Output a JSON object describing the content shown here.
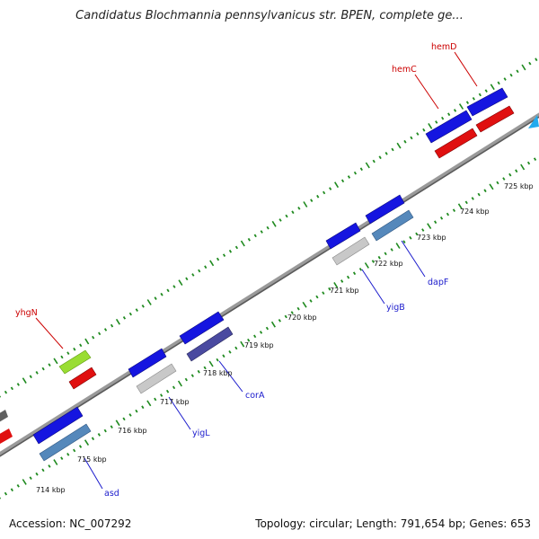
{
  "title": "Candidatus Blochmannia pennsylvanicus str. BPEN, complete ge...",
  "footer": {
    "accession": "Accession: NC_007292",
    "summary": "Topology: circular; Length: 791,654 bp; Genes: 653"
  },
  "colors": {
    "backbone": "#7c7c7c",
    "tick_dots": "#1f8a1f",
    "forward_cds": "#1212d8",
    "reverse_rna": "#e01010",
    "label_red": "#cc0000",
    "label_blue": "#1a1acc"
  },
  "kbp_labels": [
    "714 kbp",
    "715 kbp",
    "716 kbp",
    "717 kbp",
    "718 kbp",
    "719 kbp",
    "720 kbp",
    "721 kbp",
    "722 kbp",
    "723 kbp",
    "724 kbp",
    "725 kbp"
  ],
  "gene_labels": {
    "yhgN": "yhgN",
    "hemC": "hemC",
    "hemD": "hemD",
    "asd": "asd",
    "yigL": "yigL",
    "corA": "corA",
    "yigB": "yigB",
    "dapF": "dapF"
  }
}
